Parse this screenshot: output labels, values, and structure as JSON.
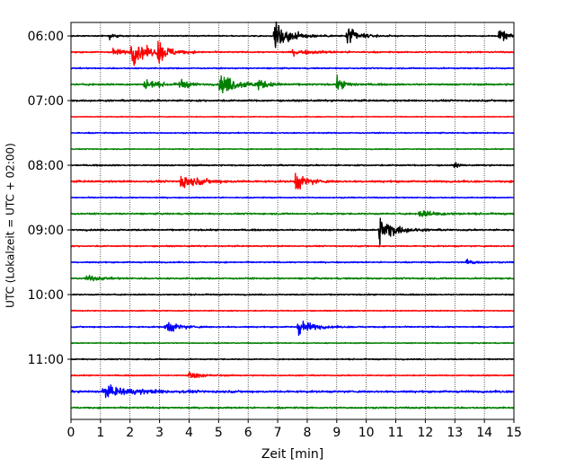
{
  "chart_data": {
    "type": "line",
    "title": "",
    "xlabel": "Zeit  [min]",
    "ylabel": "UTC (Lokalzeit = UTC + 02:00)",
    "xlim": [
      0,
      15
    ],
    "xticks": [
      0,
      1,
      2,
      3,
      4,
      5,
      6,
      7,
      8,
      9,
      10,
      11,
      12,
      13,
      14,
      15
    ],
    "x_tick_labels": [
      "0",
      "1",
      "2",
      "3",
      "4",
      "5",
      "6",
      "7",
      "8",
      "9",
      "10",
      "11",
      "12",
      "13",
      "14",
      "15"
    ],
    "y_tick_labels": [
      "06:00",
      "07:00",
      "08:00",
      "09:00",
      "10:00",
      "11:00"
    ],
    "row_colors": [
      "#000000",
      "#ff0000",
      "#0000ff",
      "#008000"
    ],
    "vertical_grid": true,
    "trace_interval_min": 15,
    "traces": [
      {
        "time": "06:00",
        "color": "#000000",
        "noise": 0.18,
        "events": [
          {
            "t": 1.3,
            "amp": 1.6,
            "dur": 0.15
          },
          {
            "t": 6.9,
            "amp": 5.0,
            "dur": 0.5
          },
          {
            "t": 9.35,
            "amp": 3.2,
            "dur": 0.35
          },
          {
            "t": 14.5,
            "amp": 2.0,
            "dur": 0.3
          }
        ]
      },
      {
        "time": "06:15",
        "color": "#ff0000",
        "noise": 0.22,
        "events": [
          {
            "t": 1.4,
            "amp": 1.2,
            "dur": 0.4
          },
          {
            "t": 2.05,
            "amp": 4.5,
            "dur": 0.45
          },
          {
            "t": 2.95,
            "amp": 3.5,
            "dur": 0.35
          },
          {
            "t": 7.5,
            "amp": 0.8,
            "dur": 0.8
          }
        ]
      },
      {
        "time": "06:30",
        "color": "#0000ff",
        "noise": 0.2,
        "events": []
      },
      {
        "time": "06:45",
        "color": "#008000",
        "noise": 0.28,
        "events": [
          {
            "t": 2.5,
            "amp": 2.0,
            "dur": 0.35
          },
          {
            "t": 3.7,
            "amp": 1.8,
            "dur": 0.25
          },
          {
            "t": 5.05,
            "amp": 3.5,
            "dur": 0.55
          },
          {
            "t": 6.3,
            "amp": 1.6,
            "dur": 0.3
          },
          {
            "t": 9.0,
            "amp": 2.0,
            "dur": 0.3
          }
        ]
      },
      {
        "time": "07:00",
        "color": "#000000",
        "noise": 0.28,
        "events": []
      },
      {
        "time": "07:15",
        "color": "#ff0000",
        "noise": 0.12,
        "events": []
      },
      {
        "time": "07:30",
        "color": "#0000ff",
        "noise": 0.18,
        "events": []
      },
      {
        "time": "07:45",
        "color": "#008000",
        "noise": 0.15,
        "events": []
      },
      {
        "time": "08:00",
        "color": "#000000",
        "noise": 0.22,
        "events": [
          {
            "t": 13.0,
            "amp": 0.9,
            "dur": 0.1
          }
        ]
      },
      {
        "time": "08:15",
        "color": "#ff0000",
        "noise": 0.3,
        "events": [
          {
            "t": 3.7,
            "amp": 2.3,
            "dur": 0.6
          },
          {
            "t": 7.6,
            "amp": 3.3,
            "dur": 0.35
          }
        ]
      },
      {
        "time": "08:30",
        "color": "#0000ff",
        "noise": 0.18,
        "events": []
      },
      {
        "time": "08:45",
        "color": "#008000",
        "noise": 0.25,
        "events": [
          {
            "t": 11.8,
            "amp": 1.1,
            "dur": 0.6
          }
        ]
      },
      {
        "time": "09:00",
        "color": "#000000",
        "noise": 0.25,
        "events": [
          {
            "t": 10.45,
            "amp": 4.6,
            "dur": 0.45
          }
        ]
      },
      {
        "time": "09:15",
        "color": "#ff0000",
        "noise": 0.2,
        "events": []
      },
      {
        "time": "09:30",
        "color": "#0000ff",
        "noise": 0.2,
        "events": [
          {
            "t": 13.4,
            "amp": 1.1,
            "dur": 0.25
          }
        ]
      },
      {
        "time": "09:45",
        "color": "#008000",
        "noise": 0.25,
        "events": [
          {
            "t": 0.5,
            "amp": 0.8,
            "dur": 0.5
          }
        ]
      },
      {
        "time": "10:00",
        "color": "#000000",
        "noise": 0.2,
        "events": []
      },
      {
        "time": "10:15",
        "color": "#ff0000",
        "noise": 0.15,
        "events": []
      },
      {
        "time": "10:30",
        "color": "#0000ff",
        "noise": 0.2,
        "events": [
          {
            "t": 3.2,
            "amp": 2.3,
            "dur": 0.4
          },
          {
            "t": 7.7,
            "amp": 2.6,
            "dur": 0.45
          }
        ]
      },
      {
        "time": "10:45",
        "color": "#008000",
        "noise": 0.15,
        "events": []
      },
      {
        "time": "11:00",
        "color": "#000000",
        "noise": 0.18,
        "events": []
      },
      {
        "time": "11:15",
        "color": "#ff0000",
        "noise": 0.18,
        "events": [
          {
            "t": 4.0,
            "amp": 1.3,
            "dur": 0.4
          }
        ]
      },
      {
        "time": "11:30",
        "color": "#0000ff",
        "noise": 0.32,
        "events": [
          {
            "t": 1.1,
            "amp": 1.7,
            "dur": 1.1
          }
        ]
      },
      {
        "time": "11:45",
        "color": "#008000",
        "noise": 0.25,
        "events": []
      }
    ]
  }
}
